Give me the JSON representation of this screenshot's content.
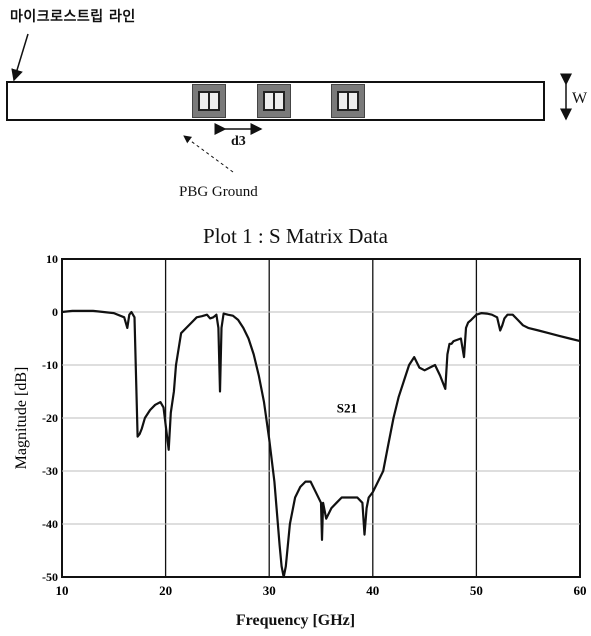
{
  "figure": {
    "strip_label": "마이크로스트립 라인",
    "width_label": "W",
    "spacing_label": "d3",
    "ground_label": "PBG Ground"
  },
  "chart_data": {
    "type": "line",
    "title": "Plot 1 : S Matrix Data",
    "xlabel": "Frequency [GHz]",
    "ylabel": "Magnitude [dB]",
    "xlim": [
      10,
      60
    ],
    "ylim": [
      -50,
      10
    ],
    "x_ticks": [
      10,
      20,
      30,
      40,
      50,
      60
    ],
    "y_ticks": [
      10,
      0,
      -10,
      -20,
      -30,
      -40,
      -50
    ],
    "grid": true,
    "legend": "none",
    "annotations": [
      {
        "text": "S21",
        "x": 37.5,
        "y": -19
      }
    ],
    "series": [
      {
        "name": "S21",
        "color": "#111111",
        "x": [
          10,
          11,
          12,
          13,
          14,
          15,
          16,
          16.3,
          16.5,
          16.7,
          17,
          17.3,
          17.5,
          17.7,
          18,
          18.5,
          19,
          19.5,
          19.8,
          20.3,
          20.5,
          20.8,
          21,
          21.5,
          22,
          22.5,
          23,
          23.5,
          24,
          24.3,
          24.6,
          24.9,
          25.1,
          25.25,
          25.4,
          25.6,
          26,
          26.5,
          27,
          27.5,
          28,
          28.5,
          29,
          29.5,
          30,
          30.5,
          31,
          31.2,
          31.4,
          31.6,
          32,
          32.5,
          33,
          33.5,
          34,
          34.5,
          35,
          35.1,
          35.2,
          35.5,
          36,
          36.5,
          37,
          37.5,
          38,
          38.5,
          39,
          39.2,
          39.4,
          39.6,
          40,
          40.5,
          41,
          41.5,
          42,
          42.5,
          43,
          43.5,
          44,
          44.5,
          45,
          45.5,
          46,
          46.5,
          47,
          47.2,
          47.4,
          47.6,
          47.8,
          48.5,
          48.8,
          49,
          49.2,
          49.5,
          50,
          50.5,
          51,
          51.5,
          52,
          52.3,
          52.5,
          52.7,
          53,
          53.5,
          54,
          54.5,
          55,
          56,
          57,
          58,
          59,
          60
        ],
        "y": [
          0,
          0.2,
          0.2,
          0.2,
          0,
          -0.2,
          -1,
          -3,
          -0.5,
          0,
          -1,
          -23.5,
          -23,
          -22,
          -20,
          -18.5,
          -17.5,
          -17,
          -18,
          -26,
          -19,
          -15,
          -10,
          -4,
          -3,
          -2,
          -1,
          -0.8,
          -0.5,
          -1.2,
          -1,
          -0.5,
          -3,
          -15,
          -3,
          -0.3,
          -0.5,
          -0.7,
          -1.5,
          -3,
          -5,
          -8,
          -12,
          -17,
          -24,
          -32,
          -44,
          -48,
          -50,
          -48,
          -40,
          -35,
          -33,
          -32,
          -32,
          -34,
          -36,
          -43,
          -36,
          -39,
          -37,
          -36,
          -35,
          -35,
          -35,
          -35,
          -36,
          -42,
          -37,
          -35,
          -34,
          -32,
          -30,
          -25,
          -20,
          -16,
          -13,
          -10,
          -8.5,
          -10.5,
          -11,
          -10.5,
          -10,
          -12,
          -14.5,
          -8,
          -6,
          -6,
          -5.5,
          -5,
          -8.5,
          -3,
          -2,
          -1.5,
          -0.5,
          -0.2,
          -0.3,
          -0.5,
          -1,
          -3.5,
          -2.5,
          -1.2,
          -0.5,
          -0.5,
          -1.5,
          -2.5,
          -3,
          -3.5,
          -4,
          -4.5,
          -5,
          -5.5
        ]
      }
    ]
  }
}
